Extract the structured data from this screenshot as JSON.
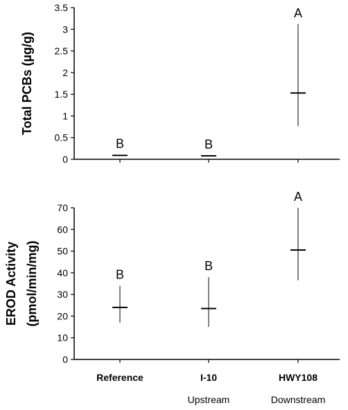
{
  "chart_data": [
    {
      "type": "scatter",
      "ylabel": "Total PCBs (µg/g)",
      "ylim": [
        0,
        3.5
      ],
      "yticks": [
        "0",
        "0.5",
        "1",
        "1.5",
        "2",
        "2.5",
        "3",
        "3.5"
      ],
      "categories": [
        "Reference",
        "I-10",
        "HWY108"
      ],
      "series": [
        {
          "mean": [
            0.09,
            0.08,
            1.53
          ],
          "low": [
            0.08,
            0.07,
            0.77
          ],
          "high": [
            0.1,
            0.09,
            3.12
          ],
          "letters": [
            "B",
            "B",
            "A"
          ]
        }
      ],
      "grid": false
    },
    {
      "type": "scatter",
      "ylabel_lines": [
        "EROD Activity",
        "(pmol/min/mg)"
      ],
      "ylim": [
        0,
        70
      ],
      "yticks": [
        "0",
        "10",
        "20",
        "30",
        "40",
        "50",
        "60",
        "70"
      ],
      "categories": [
        "Reference",
        "I-10",
        "HWY108"
      ],
      "category_sublabels": [
        "",
        "Upstream",
        "Downstream"
      ],
      "series": [
        {
          "mean": [
            24,
            23.5,
            50.5
          ],
          "low": [
            17,
            15,
            36.5
          ],
          "high": [
            34,
            38,
            70
          ],
          "letters": [
            "B",
            "B",
            "A"
          ]
        }
      ],
      "grid": false
    }
  ]
}
